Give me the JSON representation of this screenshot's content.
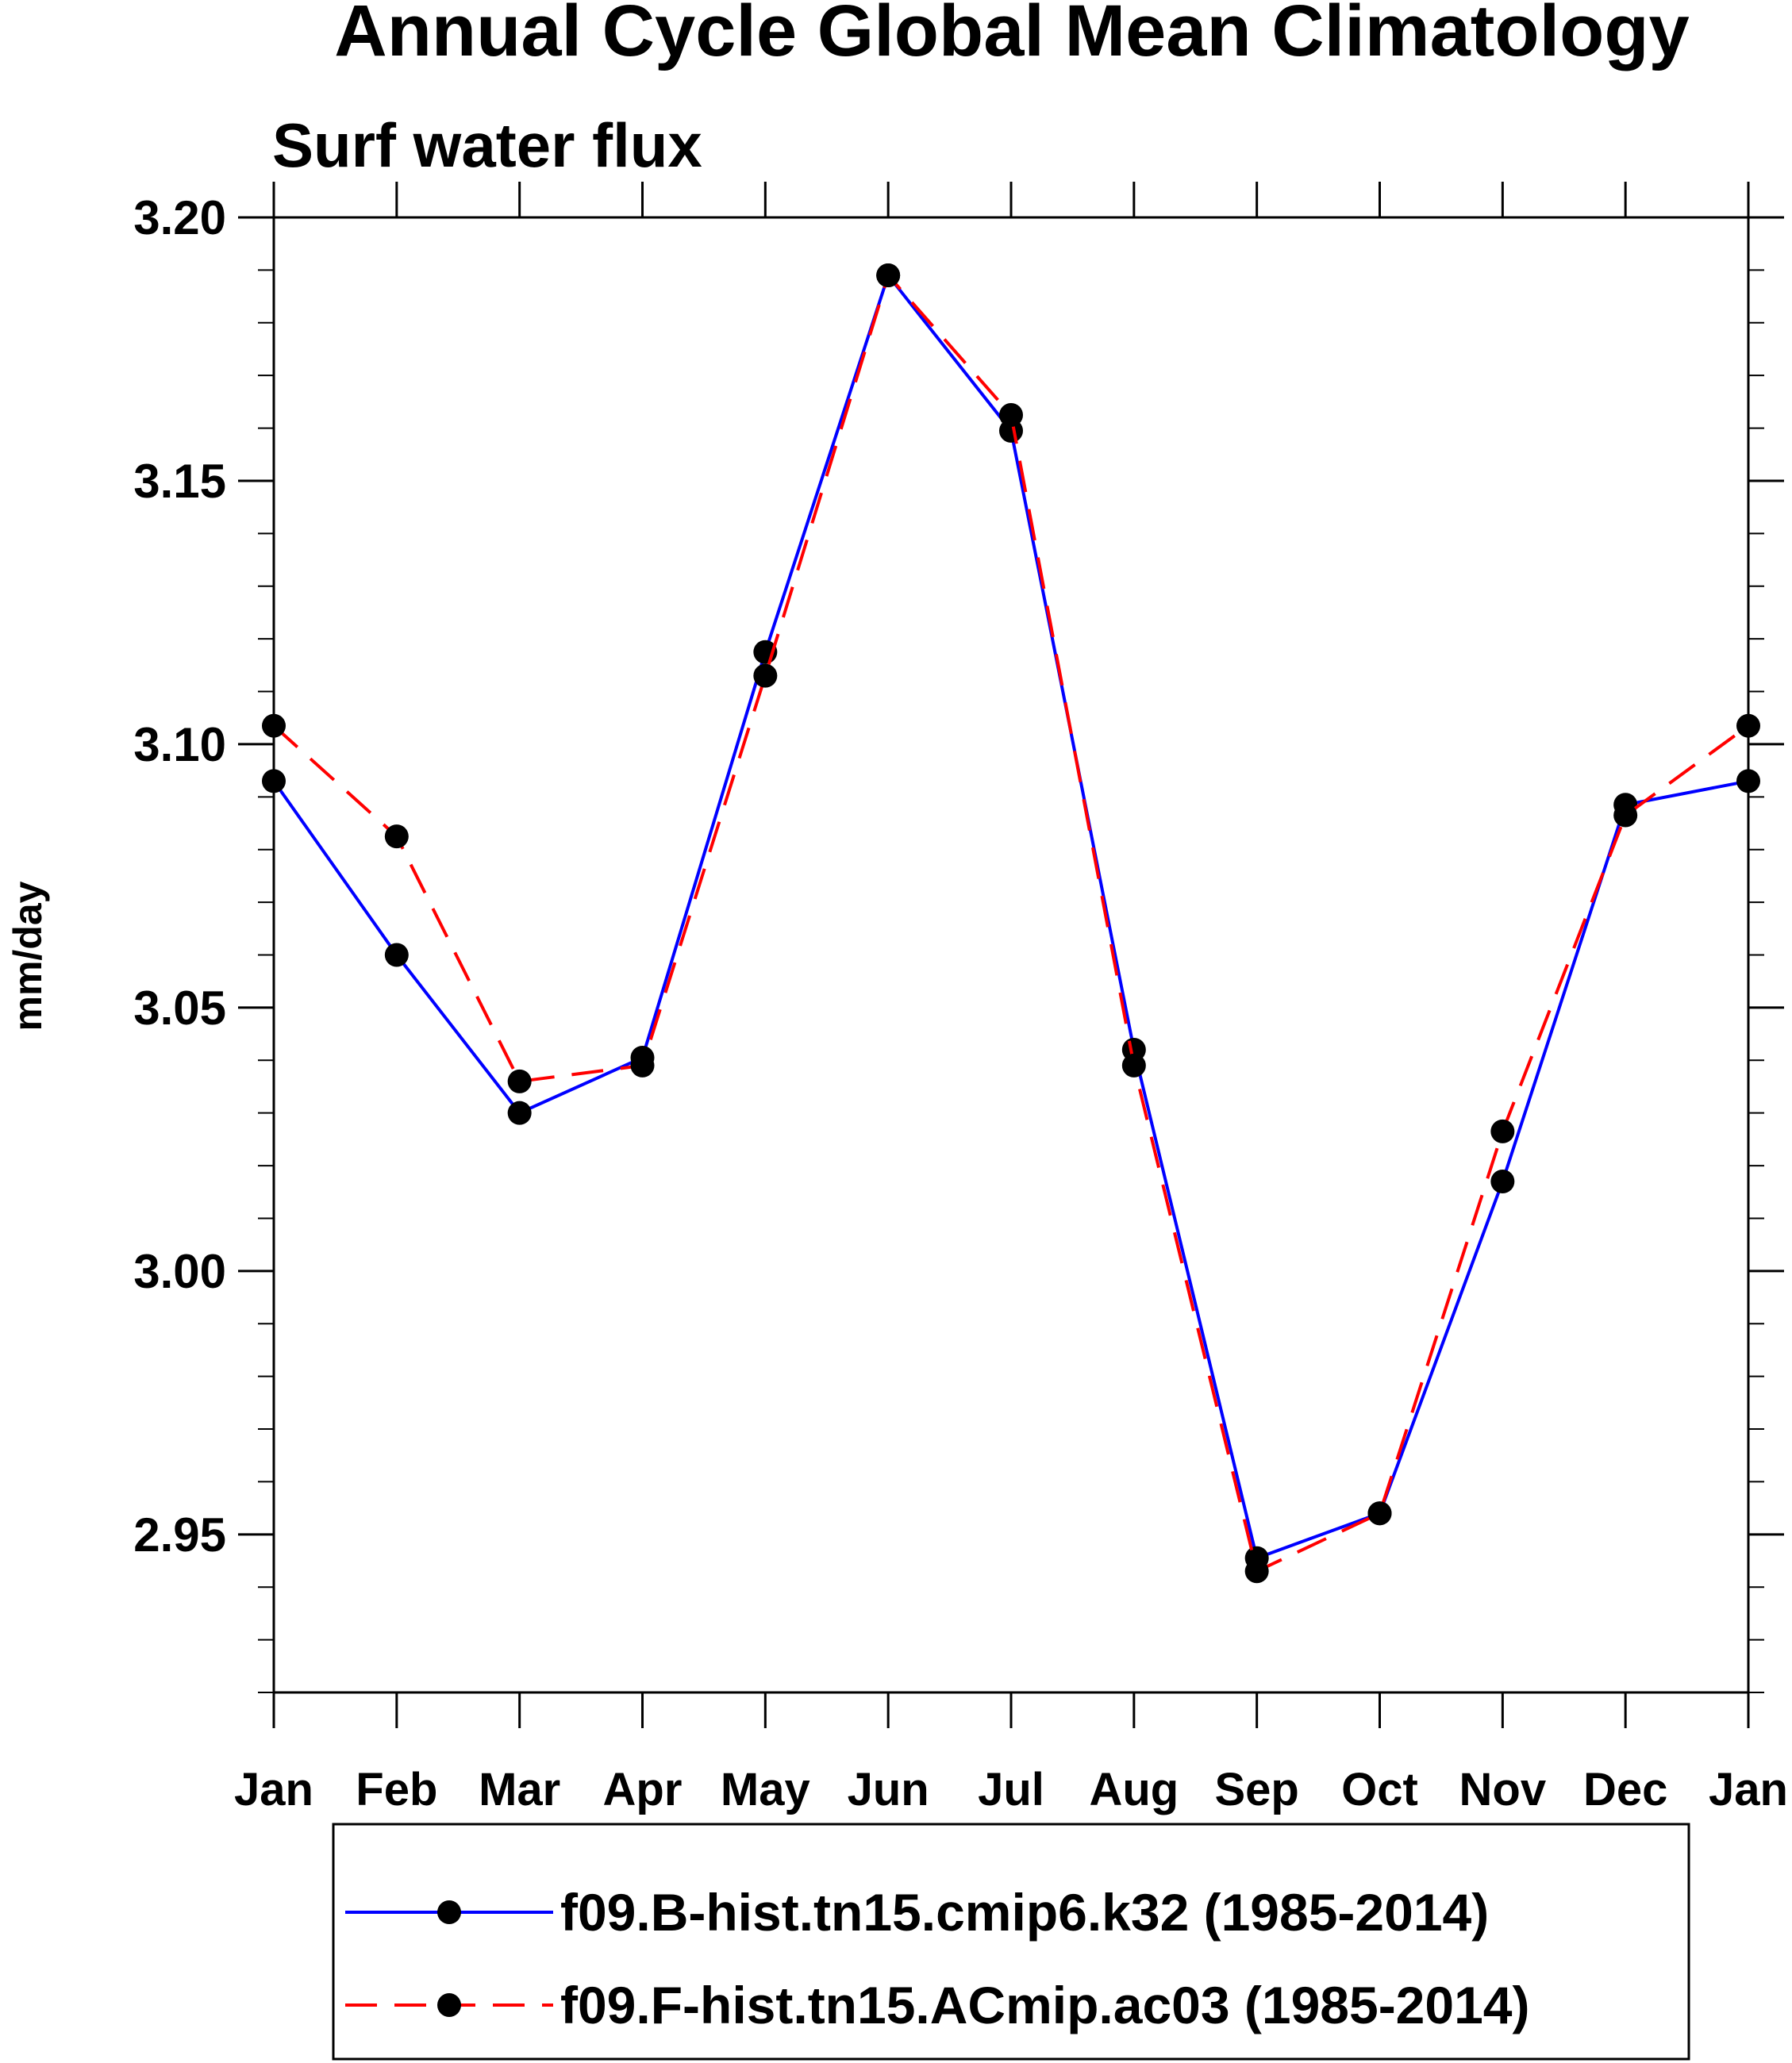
{
  "chart_data": {
    "type": "line",
    "title": "Annual Cycle Global Mean Climatology",
    "subtitle": "Surf water flux",
    "xlabel": "",
    "ylabel": "mm/day",
    "categories": [
      "Jan",
      "Feb",
      "Mar",
      "Apr",
      "May",
      "Jun",
      "Jul",
      "Aug",
      "Sep",
      "Oct",
      "Nov",
      "Dec",
      "Jan"
    ],
    "ylim": [
      2.92,
      3.2
    ],
    "yticks": [
      2.95,
      3.0,
      3.05,
      3.1,
      3.15,
      3.2
    ],
    "ytick_labels": [
      "2.95",
      "3.00",
      "3.05",
      "3.10",
      "3.15",
      "3.20"
    ],
    "yminor_step": 0.01,
    "grid": false,
    "legend_position": "bottom",
    "series": [
      {
        "name": "f09.B-hist.tn15.cmip6.k32 (1985-2014)",
        "color": "#0000ff",
        "dash": "solid",
        "marker": "filled-circle",
        "values": [
          3.093,
          3.06,
          3.03,
          3.0405,
          3.1175,
          3.189,
          3.1595,
          3.042,
          2.9455,
          2.954,
          3.017,
          3.0885,
          3.093
        ]
      },
      {
        "name": "f09.F-hist.tn15.ACmip.ac03 (1985-2014)",
        "color": "#ff0000",
        "dash": "dashed",
        "marker": "filled-circle",
        "values": [
          3.1035,
          3.0825,
          3.036,
          3.039,
          3.113,
          3.189,
          3.1625,
          3.039,
          2.943,
          2.954,
          3.0265,
          3.0865,
          3.1035
        ]
      }
    ]
  }
}
